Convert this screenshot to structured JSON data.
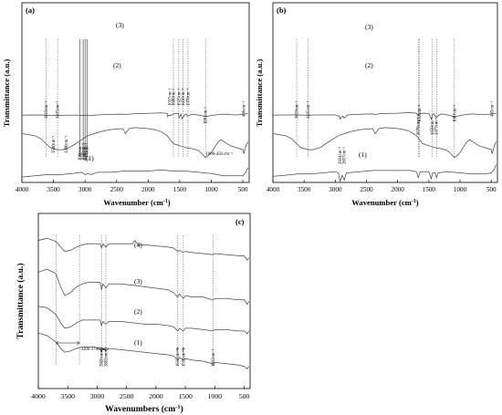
{
  "chart_data": [
    {
      "id": "a",
      "panel_label": "(a)",
      "type": "line",
      "xlabel": "Wavenumber (cm",
      "xlabel_sup": "-1",
      "xlabel_tail": ")",
      "ylabel": "Transmittance (a.u.)",
      "xlim": [
        4000,
        400
      ],
      "xticks": [
        "4000",
        "3500",
        "3000",
        "2500",
        "2000",
        "1500",
        "1000",
        "500"
      ],
      "series": [
        {
          "name": "(3)",
          "x": [
            4000,
            3800,
            3600,
            3500,
            3400,
            3300,
            3200,
            3100,
            3020,
            2990,
            2960,
            2920,
            2860,
            2800,
            2600,
            2400,
            2360,
            2300,
            2200,
            2000,
            1900,
            1800,
            1700,
            1690,
            1680,
            1650,
            1600,
            1520,
            1510,
            1480,
            1460,
            1420,
            1400,
            1380,
            1300,
            1200,
            1100,
            1080,
            1000,
            900,
            800,
            700,
            600,
            500,
            420
          ],
          "y": [
            0.86,
            0.87,
            0.86,
            0.85,
            0.85,
            0.86,
            0.86,
            0.86,
            0.84,
            0.86,
            0.85,
            0.84,
            0.86,
            0.87,
            0.89,
            0.9,
            0.88,
            0.9,
            0.92,
            0.93,
            0.94,
            0.95,
            0.93,
            0.8,
            0.86,
            0.84,
            0.91,
            0.93,
            0.75,
            0.9,
            0.72,
            0.88,
            0.9,
            0.82,
            0.9,
            0.86,
            0.82,
            0.8,
            0.85,
            0.88,
            0.9,
            0.88,
            0.87,
            0.9,
            0.92
          ]
        },
        {
          "name": "(2)",
          "x": [
            4000,
            3800,
            3700,
            3620,
            3550,
            3450,
            3350,
            3250,
            3150,
            3050,
            2950,
            2850,
            2750,
            2600,
            2400,
            2360,
            2300,
            2200,
            2000,
            1900,
            1800,
            1700,
            1650,
            1600,
            1550,
            1500,
            1450,
            1400,
            1300,
            1200,
            1150,
            1100,
            1091,
            1050,
            1000,
            950,
            900,
            850,
            800,
            700,
            600,
            500,
            486,
            450,
            420
          ],
          "y": [
            0.72,
            0.7,
            0.67,
            0.62,
            0.58,
            0.56,
            0.56,
            0.58,
            0.62,
            0.66,
            0.7,
            0.72,
            0.74,
            0.76,
            0.77,
            0.72,
            0.77,
            0.78,
            0.77,
            0.76,
            0.74,
            0.7,
            0.66,
            0.62,
            0.61,
            0.6,
            0.59,
            0.58,
            0.57,
            0.55,
            0.52,
            0.49,
            0.48,
            0.5,
            0.53,
            0.58,
            0.63,
            0.66,
            0.64,
            0.6,
            0.58,
            0.56,
            0.52,
            0.6,
            0.64
          ]
        },
        {
          "name": "(1)",
          "x": [
            4000,
            3800,
            3600,
            3400,
            3200,
            3050,
            3000,
            2950,
            2900,
            2850,
            2800,
            2600,
            2400,
            2200,
            2000,
            1800,
            1600,
            1400,
            1200,
            1000,
            900,
            800,
            700,
            600,
            500,
            450,
            420
          ],
          "y": [
            0.32,
            0.33,
            0.34,
            0.34,
            0.35,
            0.36,
            0.34,
            0.35,
            0.34,
            0.35,
            0.36,
            0.36,
            0.37,
            0.37,
            0.37,
            0.38,
            0.37,
            0.37,
            0.36,
            0.35,
            0.34,
            0.33,
            0.33,
            0.33,
            0.33,
            0.36,
            0.4
          ]
        }
      ],
      "annotations": [
        "3619cm⁻¹",
        "3435cm⁻¹",
        "3500cm⁻¹",
        "3300cm⁻¹",
        "3080cm⁻¹",
        "3030cm⁻¹",
        "3000cm⁻¹",
        "2970cm⁻¹",
        "1657cm⁻¹",
        "1600cm⁻¹",
        "1515cm⁻¹",
        "1450cm⁻¹",
        "1370cm⁻¹",
        "1091cm⁻¹",
        "486cm⁻¹",
        "1000-450 cm⁻¹"
      ]
    },
    {
      "id": "b",
      "panel_label": "(b)",
      "type": "line",
      "xlabel": "Wavenumber (cm",
      "xlabel_sup": "-1",
      "xlabel_tail": ")",
      "ylabel": "Transmittance (a.u.)",
      "xlim": [
        4000,
        400
      ],
      "xticks": [
        "4000",
        "3500",
        "3000",
        "2500",
        "2000",
        "1500",
        "1000",
        "500"
      ],
      "series": [
        {
          "name": "(3)",
          "x": [
            4000,
            3800,
            3600,
            3500,
            3400,
            3300,
            3200,
            3100,
            3000,
            2930,
            2924,
            2880,
            2857,
            2800,
            2600,
            2400,
            2360,
            2300,
            2200,
            2000,
            1900,
            1800,
            1700,
            1680,
            1650,
            1600,
            1500,
            1460,
            1440,
            1420,
            1380,
            1370,
            1300,
            1200,
            1100,
            1080,
            1000,
            900,
            800,
            700,
            600,
            500,
            420
          ],
          "y": [
            0.85,
            0.86,
            0.86,
            0.85,
            0.85,
            0.86,
            0.86,
            0.86,
            0.86,
            0.8,
            0.7,
            0.82,
            0.74,
            0.86,
            0.89,
            0.9,
            0.88,
            0.9,
            0.92,
            0.93,
            0.94,
            0.95,
            0.93,
            0.85,
            0.9,
            0.93,
            0.92,
            0.7,
            0.88,
            0.9,
            0.76,
            0.8,
            0.9,
            0.86,
            0.8,
            0.78,
            0.84,
            0.88,
            0.9,
            0.88,
            0.87,
            0.9,
            0.92
          ]
        },
        {
          "name": "(2)",
          "x": [
            4000,
            3800,
            3700,
            3619,
            3550,
            3435,
            3350,
            3250,
            3150,
            3050,
            2950,
            2850,
            2750,
            2600,
            2400,
            2360,
            2300,
            2200,
            2000,
            1900,
            1800,
            1700,
            1650,
            1600,
            1550,
            1500,
            1450,
            1400,
            1300,
            1200,
            1150,
            1100,
            1091,
            1050,
            1000,
            950,
            900,
            850,
            800,
            700,
            600,
            500,
            485,
            450,
            420
          ],
          "y": [
            0.72,
            0.7,
            0.67,
            0.62,
            0.58,
            0.56,
            0.56,
            0.58,
            0.62,
            0.66,
            0.7,
            0.72,
            0.74,
            0.76,
            0.77,
            0.72,
            0.77,
            0.78,
            0.77,
            0.76,
            0.74,
            0.7,
            0.66,
            0.62,
            0.61,
            0.6,
            0.59,
            0.58,
            0.57,
            0.55,
            0.52,
            0.49,
            0.48,
            0.5,
            0.53,
            0.58,
            0.63,
            0.66,
            0.64,
            0.6,
            0.58,
            0.56,
            0.52,
            0.6,
            0.64
          ]
        },
        {
          "name": "(1)",
          "x": [
            4000,
            3800,
            3600,
            3400,
            3200,
            3000,
            2950,
            2924,
            2890,
            2857,
            2820,
            2600,
            2400,
            2200,
            2000,
            1800,
            1700,
            1670,
            1640,
            1500,
            1460,
            1440,
            1400,
            1377,
            1350,
            1200,
            1000,
            800,
            600,
            500,
            450,
            420
          ],
          "y": [
            0.32,
            0.33,
            0.34,
            0.34,
            0.35,
            0.36,
            0.35,
            0.28,
            0.33,
            0.29,
            0.35,
            0.36,
            0.37,
            0.37,
            0.37,
            0.37,
            0.36,
            0.31,
            0.36,
            0.36,
            0.3,
            0.35,
            0.35,
            0.31,
            0.35,
            0.36,
            0.35,
            0.34,
            0.34,
            0.35,
            0.38,
            0.42
          ]
        }
      ],
      "annotations": [
        "3619cm⁻¹",
        "3435cm⁻¹",
        "2924cm⁻¹",
        "2857cm⁻¹",
        "1670cm⁻¹",
        "1650cm⁻¹",
        "1450cm⁻¹",
        "1377cm⁻¹",
        "1091cm⁻¹",
        "485cm⁻¹"
      ]
    },
    {
      "id": "c",
      "panel_label": "(c)",
      "type": "line",
      "xlabel": "Wavenumbers (cm",
      "xlabel_sup": "-1",
      "xlabel_tail": ")",
      "ylabel": "Transmittance (a.u.)",
      "xlim": [
        4000,
        400
      ],
      "xticks": [
        "4000",
        "3500",
        "3000",
        "2500",
        "2000",
        "1500",
        "1000",
        "500"
      ],
      "series": [
        {
          "name": "(4)",
          "x": [
            4000,
            3850,
            3700,
            3620,
            3550,
            3450,
            3350,
            3250,
            3150,
            3050,
            2950,
            2926,
            2900,
            2852,
            2800,
            2600,
            2450,
            2400,
            2360,
            2300,
            2200,
            2000,
            1800,
            1700,
            1632,
            1600,
            1535,
            1500,
            1400,
            1200,
            1032,
            1000,
            800,
            600,
            500,
            450,
            420
          ],
          "y": [
            0.9,
            0.92,
            0.89,
            0.84,
            0.8,
            0.81,
            0.84,
            0.86,
            0.87,
            0.87,
            0.87,
            0.83,
            0.87,
            0.84,
            0.87,
            0.87,
            0.87,
            0.87,
            0.9,
            0.86,
            0.86,
            0.85,
            0.84,
            0.83,
            0.8,
            0.81,
            0.79,
            0.8,
            0.79,
            0.78,
            0.77,
            0.78,
            0.77,
            0.76,
            0.76,
            0.72,
            0.74
          ]
        },
        {
          "name": "(3)",
          "x": [
            4000,
            3850,
            3700,
            3620,
            3550,
            3450,
            3350,
            3250,
            3150,
            3050,
            2950,
            2926,
            2900,
            2852,
            2800,
            2600,
            2400,
            2200,
            2000,
            1800,
            1700,
            1632,
            1600,
            1535,
            1500,
            1400,
            1200,
            1032,
            1000,
            800,
            600,
            500,
            450,
            420
          ],
          "y": [
            0.74,
            0.76,
            0.73,
            0.64,
            0.58,
            0.6,
            0.64,
            0.66,
            0.67,
            0.67,
            0.67,
            0.62,
            0.66,
            0.63,
            0.66,
            0.66,
            0.65,
            0.64,
            0.63,
            0.62,
            0.6,
            0.57,
            0.59,
            0.56,
            0.58,
            0.57,
            0.57,
            0.55,
            0.56,
            0.56,
            0.55,
            0.55,
            0.52,
            0.54
          ]
        },
        {
          "name": "(2)",
          "x": [
            4000,
            3850,
            3700,
            3620,
            3550,
            3450,
            3350,
            3250,
            3150,
            3050,
            2950,
            2926,
            2900,
            2852,
            2800,
            2600,
            2400,
            2200,
            2000,
            1800,
            1700,
            1632,
            1600,
            1535,
            1500,
            1400,
            1200,
            1032,
            1000,
            800,
            600,
            500,
            450,
            420
          ],
          "y": [
            0.56,
            0.55,
            0.5,
            0.44,
            0.4,
            0.41,
            0.44,
            0.46,
            0.46,
            0.46,
            0.46,
            0.42,
            0.45,
            0.43,
            0.45,
            0.45,
            0.44,
            0.43,
            0.43,
            0.42,
            0.41,
            0.38,
            0.4,
            0.38,
            0.4,
            0.4,
            0.39,
            0.38,
            0.39,
            0.39,
            0.38,
            0.38,
            0.36,
            0.38
          ]
        },
        {
          "name": "(1)",
          "x": [
            4000,
            3850,
            3700,
            3620,
            3550,
            3450,
            3350,
            3250,
            3150,
            3050,
            2950,
            2926,
            2900,
            2852,
            2800,
            2600,
            2400,
            2200,
            2000,
            1800,
            1700,
            1632,
            1600,
            1535,
            1500,
            1400,
            1200,
            1032,
            1000,
            800,
            600,
            500,
            450,
            420
          ],
          "y": [
            0.36,
            0.34,
            0.29,
            0.24,
            0.21,
            0.22,
            0.24,
            0.25,
            0.25,
            0.25,
            0.24,
            0.21,
            0.24,
            0.22,
            0.24,
            0.23,
            0.22,
            0.21,
            0.2,
            0.19,
            0.18,
            0.15,
            0.17,
            0.15,
            0.16,
            0.15,
            0.14,
            0.12,
            0.13,
            0.12,
            0.11,
            0.1,
            0.08,
            0.1
          ]
        }
      ],
      "annotations": [
        "3300-3700cm⁻¹",
        "2926cm⁻¹",
        "2852cm⁻¹",
        "1632cm⁻¹",
        "1535cm⁻¹",
        "1032cm⁻¹"
      ]
    }
  ]
}
